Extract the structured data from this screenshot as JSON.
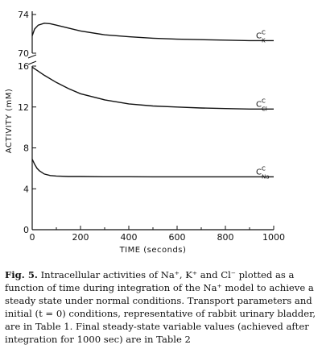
{
  "chart_data": {
    "type": "line",
    "xlabel": "TIME (seconds)",
    "ylabel": "ACTIVITY (mM)",
    "xlim": [
      0,
      1000
    ],
    "x_ticks": [
      "0",
      "200",
      "400",
      "600",
      "800",
      "1000"
    ],
    "y_lower": {
      "range": [
        0,
        16
      ],
      "ticks": [
        "0",
        "4",
        "8",
        "12",
        "16"
      ]
    },
    "y_upper": {
      "range": [
        70,
        74
      ],
      "ticks": [
        "70",
        "74"
      ]
    },
    "axis_break": "between 16 and 70 mM",
    "series": [
      {
        "name": "Ck",
        "label_main": "C",
        "label_sup": "C",
        "label_sub": "K",
        "x": [
          0,
          10,
          25,
          50,
          75,
          100,
          150,
          200,
          300,
          400,
          500,
          600,
          700,
          800,
          900,
          1000
        ],
        "y": [
          71.8,
          72.5,
          72.9,
          73.1,
          73.05,
          72.9,
          72.6,
          72.3,
          71.9,
          71.7,
          71.55,
          71.45,
          71.4,
          71.35,
          71.3,
          71.3
        ]
      },
      {
        "name": "Ccl",
        "label_main": "C",
        "label_sup": "C",
        "label_sub": "Cl",
        "x": [
          0,
          25,
          50,
          100,
          150,
          200,
          300,
          400,
          500,
          600,
          700,
          800,
          900,
          1000
        ],
        "y": [
          15.9,
          15.5,
          15.1,
          14.4,
          13.8,
          13.3,
          12.7,
          12.3,
          12.1,
          12.0,
          11.9,
          11.85,
          11.8,
          11.8
        ]
      },
      {
        "name": "Cna",
        "label_main": "C",
        "label_sup": "C",
        "label_sub": "Na",
        "x": [
          0,
          10,
          20,
          30,
          50,
          75,
          100,
          150,
          200,
          300,
          400,
          500,
          600,
          800,
          1000
        ],
        "y": [
          6.9,
          6.4,
          6.0,
          5.75,
          5.45,
          5.3,
          5.25,
          5.2,
          5.2,
          5.18,
          5.18,
          5.17,
          5.17,
          5.17,
          5.17
        ]
      }
    ]
  },
  "caption": {
    "label": "Fig. 5.",
    "text": " Intracellular activities of Na⁺, K⁺ and Cl⁻ plotted as a function of time during integration of the Na⁺ model to achieve a steady state under normal conditions. Transport parameters and initial (t = 0) conditions, representative of rabbit urinary bladder, are in Table 1. Final steady-state variable values (achieved after integration for 1000 sec) are in Table 2"
  }
}
